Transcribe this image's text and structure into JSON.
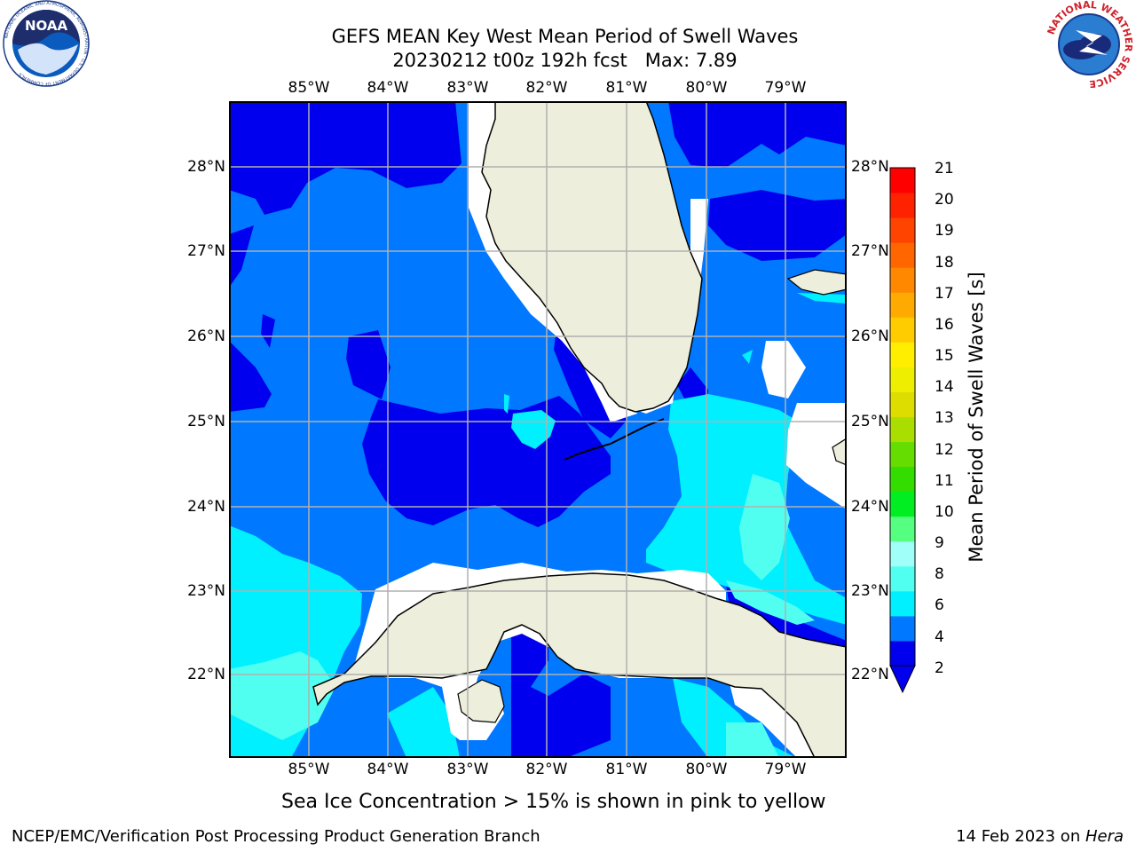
{
  "header": {
    "title_line1": "GEFS MEAN Key West Mean Period of Swell Waves",
    "title_line2": "20230212 t00z 192h fcst   Max: 7.89"
  },
  "logos": {
    "left": {
      "name": "noaa-logo",
      "text": "NOAA",
      "ring_text": "NATIONAL OCEANIC AND ATMOSPHERIC ADMINISTRATION · U.S. DEPARTMENT OF COMMERCE"
    },
    "right": {
      "name": "nws-logo",
      "ring_text": "NATIONAL WEATHER SERVICE"
    }
  },
  "map": {
    "lon_labels": [
      "85°W",
      "84°W",
      "83°W",
      "82°W",
      "81°W",
      "80°W",
      "79°W"
    ],
    "lat_labels": [
      "28°N",
      "27°N",
      "26°N",
      "25°N",
      "24°N",
      "23°N",
      "22°N"
    ],
    "land_color": "#eeeedd",
    "grid_color": "#b0b0b0"
  },
  "colorbar": {
    "label": "Mean Period of Swell Waves [s]",
    "ticks": [
      "21",
      "20",
      "19",
      "18",
      "17",
      "16",
      "15",
      "14",
      "13",
      "12",
      "11",
      "10",
      "9",
      "8",
      "6",
      "4",
      "2"
    ],
    "colors": [
      "#0000ee",
      "#0078ff",
      "#00f0ff",
      "#50fff0",
      "#a0fff8",
      "#55ff80",
      "#00ee22",
      "#33dd00",
      "#66dd00",
      "#aadd00",
      "#dddd00",
      "#eeee00",
      "#ffee00",
      "#ffcc00",
      "#ffaa00",
      "#ff8800",
      "#ff6600",
      "#ff4400",
      "#ff2200",
      "#ff0000"
    ],
    "extend_color": "#0000ee"
  },
  "note": "Sea Ice Concentration > 15% is shown in pink to yellow",
  "footer": {
    "left": "NCEP/EMC/Verification Post Processing Product Generation Branch",
    "right_date": "14 Feb 2023 on ",
    "right_host": "Hera"
  }
}
